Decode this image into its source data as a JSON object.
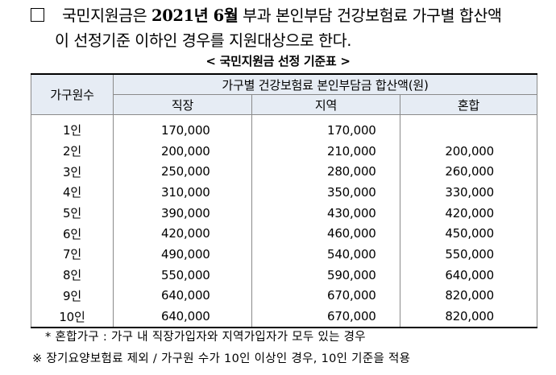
{
  "intro": {
    "part1": "국민지원금은 ",
    "bold1": "2021년 6월",
    "part2": " 부과 본인부담 건강보험료 가구별 합산액",
    "part3": "이 선정기준 이하",
    "part4": "인 경우를 지원대상으로 한다."
  },
  "table_title": "< 국민지원금 선정 기준표 >",
  "headers": {
    "household": "가구원수",
    "group": "가구별 건강보험료 본인부담금 합산액(원)",
    "workplace": "직장",
    "regional": "지역",
    "mixed": "혼합"
  },
  "rows": [
    {
      "size": "1인",
      "workplace": "170,000",
      "regional": "170,000",
      "mixed": ""
    },
    {
      "size": "2인",
      "workplace": "200,000",
      "regional": "210,000",
      "mixed": "200,000"
    },
    {
      "size": "3인",
      "workplace": "250,000",
      "regional": "280,000",
      "mixed": "260,000"
    },
    {
      "size": "4인",
      "workplace": "310,000",
      "regional": "350,000",
      "mixed": "330,000"
    },
    {
      "size": "5인",
      "workplace": "390,000",
      "regional": "430,000",
      "mixed": "420,000"
    },
    {
      "size": "6인",
      "workplace": "420,000",
      "regional": "460,000",
      "mixed": "450,000"
    },
    {
      "size": "7인",
      "workplace": "490,000",
      "regional": "540,000",
      "mixed": "550,000"
    },
    {
      "size": "8인",
      "workplace": "550,000",
      "regional": "590,000",
      "mixed": "640,000"
    },
    {
      "size": "9인",
      "workplace": "640,000",
      "regional": "670,000",
      "mixed": "820,000"
    },
    {
      "size": "10인",
      "workplace": "640,000",
      "regional": "670,000",
      "mixed": "820,000"
    }
  ],
  "notes": {
    "note1": "* 혼합가구 : 가구 내 직장가입자와 지역가입자가 모두 있는 경우",
    "note2": "※ 장기요양보험료 제외 / 가구원 수가 10인 이상인 경우, 10인 기준을 적용"
  }
}
